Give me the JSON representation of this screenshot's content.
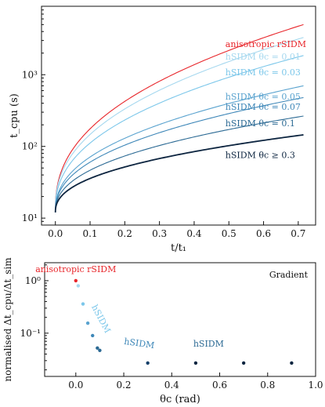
{
  "chart_data": [
    {
      "type": "line",
      "title": "",
      "xlabel": "t/t₁",
      "ylabel": "t_cpu (s)",
      "xlim": [
        -0.04,
        0.75
      ],
      "ylim": [
        8,
        9000
      ],
      "yscale": "log",
      "xticks": [
        0.0,
        0.1,
        0.2,
        0.3,
        0.4,
        0.5,
        0.6,
        0.7
      ],
      "xtick_labels": [
        "0.0",
        "0.1",
        "0.2",
        "0.3",
        "0.4",
        "0.5",
        "0.6",
        "0.7"
      ],
      "yticks": [
        10,
        100,
        1000
      ],
      "ytick_labels": [
        "10¹",
        "10²",
        "10³"
      ],
      "grid": false,
      "series": [
        {
          "name": "anisotropic rSIDM",
          "label": "anisotropic rSIDM",
          "color": "#e8262b",
          "start": 13,
          "end": 5000
        },
        {
          "name": "hSIDM θc = 0.01",
          "label": "hSIDM   θc = 0.01",
          "color": "#a6d8ef",
          "start": 13,
          "end": 3300
        },
        {
          "name": "hSIDM θc = 0.03",
          "label": "hSIDM        θc = 0.03",
          "color": "#7cc7ea",
          "start": 12.5,
          "end": 1850
        },
        {
          "name": "hSIDM θc = 0.05",
          "label": "hSIDM        θc = 0.05",
          "color": "#5aa3cf",
          "start": 12,
          "end": 700
        },
        {
          "name": "hSIDM θc = 0.07",
          "label": "hSIDM        θc = 0.07",
          "color": "#3e87b8",
          "start": 12,
          "end": 480
        },
        {
          "name": "hSIDM θc = 0.1",
          "label": "hSIDM    θc = 0.1",
          "color": "#2c6a94",
          "start": 12,
          "end": 265
        },
        {
          "name": "hSIDM θc ≥ 0.3",
          "label": "hSIDM    θc ≥ 0.3",
          "color": "#0d2540",
          "start": 12,
          "end": 145
        }
      ]
    },
    {
      "type": "scatter",
      "title": "",
      "xlabel": "θc (rad)",
      "ylabel": "normalised Δt_cpu/Δt_sim",
      "xlim": [
        -0.13,
        1.0
      ],
      "ylim": [
        0.015,
        2.2
      ],
      "yscale": "log",
      "xticks": [
        0.0,
        0.2,
        0.4,
        0.6,
        0.8,
        1.0
      ],
      "xtick_labels": [
        "0.0",
        "0.2",
        "0.4",
        "0.6",
        "0.8",
        "1.0"
      ],
      "yticks": [
        0.1,
        1
      ],
      "ytick_labels": [
        "10⁻¹",
        "10⁰"
      ],
      "legend_text": "Gradient",
      "annotations": [
        {
          "text": "anisotropic rSIDM",
          "color": "#e8262b"
        },
        {
          "text": "hSIDM",
          "color": "#7cc7ea"
        },
        {
          "text": "hSIDM",
          "color": "#3e87b8"
        },
        {
          "text": "hSIDM",
          "color": "#2c6a94"
        }
      ],
      "points": [
        {
          "x": 0.0,
          "y": 1.0,
          "color": "#e8262b"
        },
        {
          "x": 0.01,
          "y": 0.8,
          "color": "#a6d8ef"
        },
        {
          "x": 0.03,
          "y": 0.36,
          "color": "#7cc7ea"
        },
        {
          "x": 0.05,
          "y": 0.155,
          "color": "#5aa3cf"
        },
        {
          "x": 0.07,
          "y": 0.09,
          "color": "#3e87b8"
        },
        {
          "x": 0.09,
          "y": 0.052,
          "color": "#2c6a94"
        },
        {
          "x": 0.1,
          "y": 0.047,
          "color": "#2c6a94"
        },
        {
          "x": 0.3,
          "y": 0.027,
          "color": "#16406a"
        },
        {
          "x": 0.5,
          "y": 0.027,
          "color": "#0d2540"
        },
        {
          "x": 0.7,
          "y": 0.027,
          "color": "#0d2540"
        },
        {
          "x": 0.9,
          "y": 0.027,
          "color": "#0d2540"
        }
      ]
    }
  ]
}
